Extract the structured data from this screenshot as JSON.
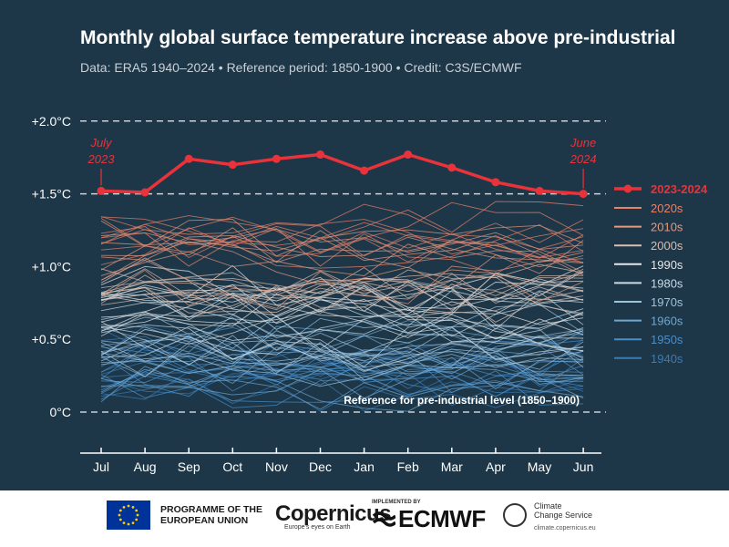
{
  "title": "Monthly global surface temperature increase above pre-industrial",
  "subtitle": "Data: ERA5 1940–2024  •  Reference period: 1850-1900  •  Credit: C3S/ECMWF",
  "chart_data": {
    "type": "line",
    "x": [
      "Jul",
      "Aug",
      "Sep",
      "Oct",
      "Nov",
      "Dec",
      "Jan",
      "Feb",
      "Mar",
      "Apr",
      "May",
      "Jun"
    ],
    "ylim": [
      -0.3,
      2.0
    ],
    "yticks": [
      {
        "value": 2.0,
        "label": "+2.0°C"
      },
      {
        "value": 1.5,
        "label": "+1.5°C"
      },
      {
        "value": 1.0,
        "label": "+1.0°C"
      },
      {
        "value": 0.5,
        "label": "+0.5°C"
      },
      {
        "value": 0.0,
        "label": "0°C"
      }
    ],
    "grid": false,
    "reference_lines": [
      2.0,
      1.5,
      0.0
    ],
    "reference_label": "Reference for pre-industrial level (1850–1900)",
    "highlight_series": {
      "name": "2023-2024",
      "color": "#e8333a",
      "values": [
        1.52,
        1.51,
        1.74,
        1.7,
        1.74,
        1.77,
        1.66,
        1.77,
        1.68,
        1.58,
        1.52,
        1.5
      ]
    },
    "annotations": [
      {
        "text": "July 2023",
        "x": "Jul"
      },
      {
        "text": "June 2024",
        "x": "Jun"
      }
    ],
    "decades": [
      {
        "name": "2020s",
        "color": "#e8826a",
        "range": [
          1.1,
          1.35
        ]
      },
      {
        "name": "2010s",
        "color": "#e39a80",
        "range": [
          0.85,
          1.25
        ]
      },
      {
        "name": "2000s",
        "color": "#dbbcae",
        "range": [
          0.75,
          1.05
        ]
      },
      {
        "name": "1990s",
        "color": "#e6e6e6",
        "range": [
          0.55,
          0.9
        ]
      },
      {
        "name": "1980s",
        "color": "#c9dbe6",
        "range": [
          0.4,
          0.75
        ]
      },
      {
        "name": "1970s",
        "color": "#9cc2dc",
        "range": [
          0.25,
          0.6
        ]
      },
      {
        "name": "1960s",
        "color": "#6ea7d2",
        "range": [
          0.15,
          0.5
        ]
      },
      {
        "name": "1950s",
        "color": "#4a8fc8",
        "range": [
          0.1,
          0.45
        ]
      },
      {
        "name": "1940s",
        "color": "#3a7bb5",
        "range": [
          0.1,
          0.45
        ]
      }
    ],
    "legend_position": "right"
  },
  "footer": {
    "eu_label": "PROGRAMME OF THE EUROPEAN UNION",
    "eu_line1": "PROGRAMME OF THE",
    "eu_line2": "EUROPEAN UNION",
    "copernicus": "opernicus",
    "copernicus_sub": "Europe's eyes on Earth",
    "implemented_by": "IMPLEMENTED BY",
    "ecmwf": "ECMWF",
    "ccs_line1": "Climate",
    "ccs_line2": "Change Service",
    "ccs_url": "climate.copernicus.eu"
  }
}
